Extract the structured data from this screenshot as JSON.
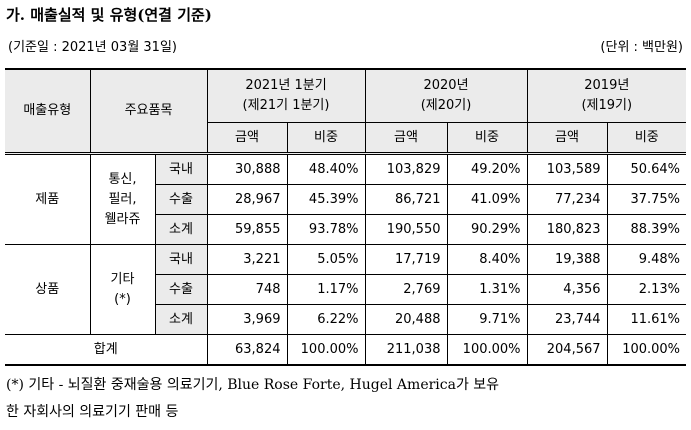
{
  "title": "가. 매출실적 및 유형(연결 기준)",
  "base_date": "(기준일 : 2021년 03월 31일)",
  "unit": "(단위 : 백만원)",
  "table": {
    "headers": {
      "type": "매출유형",
      "item": "주요품목",
      "periods": [
        {
          "year": "2021년 1분기",
          "term": "(제21기 1분기)"
        },
        {
          "year": "2020년",
          "term": "(제20기)"
        },
        {
          "year": "2019년",
          "term": "(제19기)"
        }
      ],
      "amount": "금액",
      "ratio": "비중"
    },
    "groups": [
      {
        "type": "제품",
        "item": [
          "통신,",
          "필러,",
          "웰라쥬"
        ],
        "rows": [
          {
            "label": "국내",
            "cells": [
              "30,888",
              "48.40%",
              "103,829",
              "49.20%",
              "103,589",
              "50.64%"
            ]
          },
          {
            "label": "수출",
            "cells": [
              "28,967",
              "45.39%",
              "86,721",
              "41.09%",
              "77,234",
              "37.75%"
            ]
          },
          {
            "label": "소계",
            "cells": [
              "59,855",
              "93.78%",
              "190,550",
              "90.29%",
              "180,823",
              "88.39%"
            ]
          }
        ]
      },
      {
        "type": "상품",
        "item": [
          "기타",
          "(*)"
        ],
        "rows": [
          {
            "label": "국내",
            "cells": [
              "3,221",
              "5.05%",
              "17,719",
              "8.40%",
              "19,388",
              "9.48%"
            ]
          },
          {
            "label": "수출",
            "cells": [
              "748",
              "1.17%",
              "2,769",
              "1.31%",
              "4,356",
              "2.13%"
            ]
          },
          {
            "label": "소계",
            "cells": [
              "3,969",
              "6.22%",
              "20,488",
              "9.71%",
              "23,744",
              "11.61%"
            ]
          }
        ]
      }
    ],
    "total": {
      "label": "합계",
      "cells": [
        "63,824",
        "100.00%",
        "211,038",
        "100.00%",
        "204,567",
        "100.00%"
      ]
    }
  },
  "footnote": [
    "(*) 기타 - 뇌질환 중재술용 의료기기, Blue Rose Forte, Hugel America가 보유",
    "한 자회사의 의료기기 판매 등"
  ]
}
